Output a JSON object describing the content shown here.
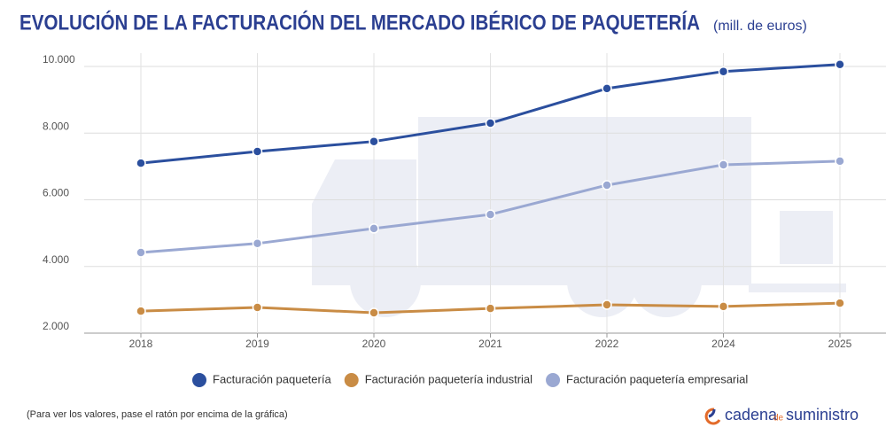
{
  "chart_data": {
    "type": "line",
    "title": "EVOLUCIÓN DE LA FACTURACIÓN DEL MERCADO IBÉRICO DE PAQUETERÍA",
    "subtitle": "(mill. de euros)",
    "categories": [
      "2018",
      "2019",
      "2020",
      "2021",
      "2022",
      "2024",
      "2025"
    ],
    "series": [
      {
        "name": "Facturación paquetería",
        "color": "#2b4f9e",
        "values": [
          7100,
          7450,
          7750,
          8300,
          9340,
          9850,
          10060
        ]
      },
      {
        "name": "Facturación paquetería industrial",
        "color": "#c98c45",
        "values": [
          2660,
          2770,
          2610,
          2740,
          2850,
          2800,
          2900
        ]
      },
      {
        "name": "Facturación paquetería empresarial",
        "color": "#9aa8d2",
        "values": [
          4420,
          4690,
          5140,
          5560,
          6440,
          7050,
          7160
        ]
      }
    ],
    "ylim": [
      2000,
      10400
    ],
    "yticks": [
      {
        "value": 2000,
        "label": "2.000"
      },
      {
        "value": 4000,
        "label": "4.000"
      },
      {
        "value": 6000,
        "label": "6.000"
      },
      {
        "value": 8000,
        "label": "8.000"
      },
      {
        "value": 10000,
        "label": "10.000"
      }
    ],
    "grid": true,
    "legend": "bottom",
    "note": "(Para ver los valores, pase el ratón por encima de la gráfica)",
    "logo": {
      "part1": "cadena",
      "part2": "de",
      "part3": "suministro"
    }
  }
}
